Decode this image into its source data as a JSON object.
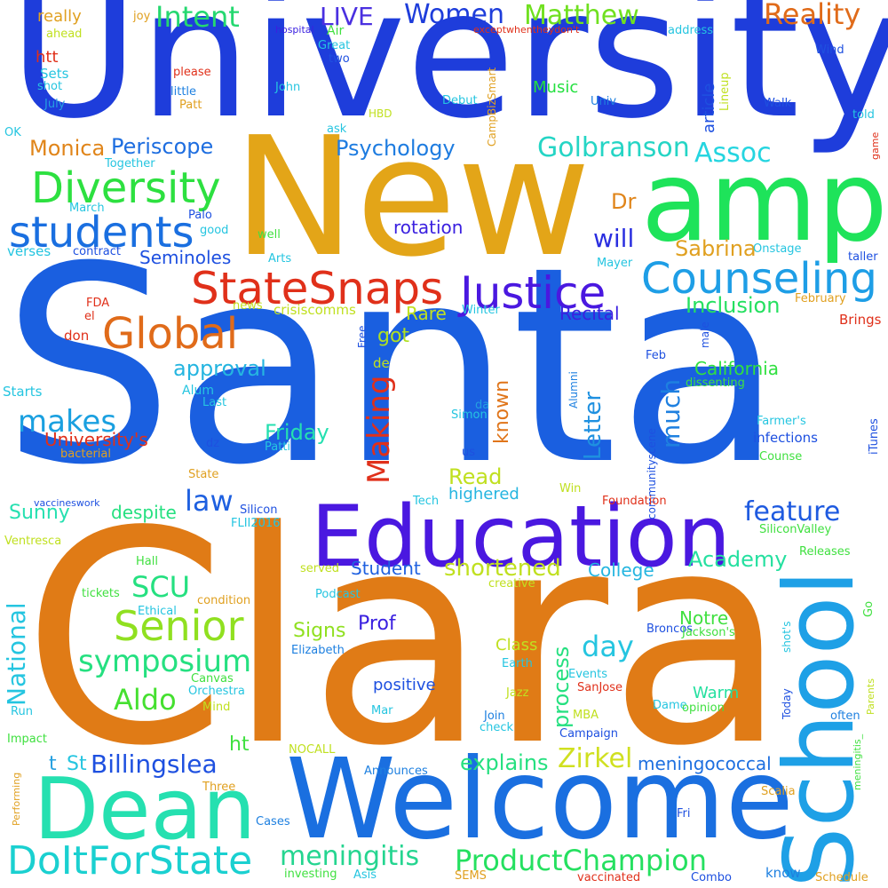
{
  "words": [
    {
      "text": "University",
      "color": "#1e3ddb"
    },
    {
      "text": "Santa",
      "color": "#1a5fe0"
    },
    {
      "text": "Clara",
      "color": "#e07b16"
    },
    {
      "text": "New",
      "color": "#e3a518"
    },
    {
      "text": "amp",
      "color": "#1ee35a"
    },
    {
      "text": "Welcome",
      "color": "#1a6fe0"
    },
    {
      "text": "Education",
      "color": "#4a18e0"
    },
    {
      "text": "School",
      "color": "#1ea0e6"
    },
    {
      "text": "Dean",
      "color": "#25e0b0"
    },
    {
      "text": "DoItForState",
      "color": "#1ad0d0"
    },
    {
      "text": "StateSnaps",
      "color": "#e0301a"
    },
    {
      "text": "Justice",
      "color": "#4a18e0"
    },
    {
      "text": "Counseling",
      "color": "#1e9ee6"
    },
    {
      "text": "Diversity",
      "color": "#2de040"
    },
    {
      "text": "students",
      "color": "#1a6fe0"
    },
    {
      "text": "Global",
      "color": "#e06b1a"
    },
    {
      "text": "Senior",
      "color": "#90e020"
    },
    {
      "text": "meningitis",
      "color": "#25d590"
    },
    {
      "text": "ProductChampion",
      "color": "#25e060"
    },
    {
      "text": "symposium",
      "color": "#25e080"
    },
    {
      "text": "Reality",
      "color": "#e06b1a"
    },
    {
      "text": "Matthew",
      "color": "#70e020"
    },
    {
      "text": "Women",
      "color": "#1e3ddb"
    },
    {
      "text": "Intent",
      "color": "#25d870"
    },
    {
      "text": "LIVE",
      "color": "#4a30e0"
    },
    {
      "text": "Golbranson",
      "color": "#25d5c5"
    },
    {
      "text": "Assoc",
      "color": "#25d5e0"
    },
    {
      "text": "Periscope",
      "color": "#1e6ee0"
    },
    {
      "text": "Psychology",
      "color": "#1e7ce0"
    },
    {
      "text": "Monica",
      "color": "#e0851a"
    },
    {
      "text": "makes",
      "color": "#1aa0e0"
    },
    {
      "text": "Making",
      "color": "#e0301a"
    },
    {
      "text": "Billingslea",
      "color": "#1e50e0"
    },
    {
      "text": "Zirkel",
      "color": "#d0e020"
    },
    {
      "text": "feature",
      "color": "#1e5ae0"
    },
    {
      "text": "shortened",
      "color": "#c0e020"
    },
    {
      "text": "SCU",
      "color": "#25e080"
    },
    {
      "text": "Aldo",
      "color": "#45e030"
    },
    {
      "text": "day",
      "color": "#25c5e0"
    },
    {
      "text": "law",
      "color": "#1e60e0"
    },
    {
      "text": "Sabrina",
      "color": "#e0a020"
    },
    {
      "text": "Dr",
      "color": "#e0851a"
    },
    {
      "text": "will",
      "color": "#2a2ee0"
    },
    {
      "text": "much",
      "color": "#1e80e0"
    },
    {
      "text": "Inclusion",
      "color": "#25e060"
    },
    {
      "text": "Academy",
      "color": "#25e0a0"
    },
    {
      "text": "Letter",
      "color": "#1e90e0"
    },
    {
      "text": "explains",
      "color": "#25e080"
    },
    {
      "text": "meningococcal",
      "color": "#1e70e0"
    },
    {
      "text": "National",
      "color": "#25c5e0"
    },
    {
      "text": "process",
      "color": "#25e080"
    },
    {
      "text": "California",
      "color": "#30e040"
    },
    {
      "text": "known",
      "color": "#e0751a"
    },
    {
      "text": "Friday",
      "color": "#25e0b0"
    },
    {
      "text": "approval",
      "color": "#25b5e0"
    },
    {
      "text": "Read",
      "color": "#c0e020"
    },
    {
      "text": "got",
      "color": "#b0e020"
    },
    {
      "text": "Rare",
      "color": "#c0e020"
    },
    {
      "text": "Recital",
      "color": "#3a20e0"
    },
    {
      "text": "rotation",
      "color": "#3a20e0"
    },
    {
      "text": "Seminoles",
      "color": "#1e50e0"
    },
    {
      "text": "Student",
      "color": "#1e60e0"
    },
    {
      "text": "College",
      "color": "#25b5e0"
    },
    {
      "text": "Prof",
      "color": "#3a20e0"
    },
    {
      "text": "Signs",
      "color": "#90e020"
    },
    {
      "text": "Notre",
      "color": "#40e040"
    },
    {
      "text": "Warm",
      "color": "#25e0a0"
    },
    {
      "text": "Sunny",
      "color": "#25e0b0"
    },
    {
      "text": "despite",
      "color": "#25e080"
    },
    {
      "text": "University's",
      "color": "#e0301a"
    },
    {
      "text": "ht",
      "color": "#40e040"
    },
    {
      "text": "St",
      "color": "#25c5e0"
    },
    {
      "text": "t",
      "color": "#25a0e0"
    },
    {
      "text": "Music",
      "color": "#25e040"
    },
    {
      "text": "article",
      "color": "#1e50e0"
    },
    {
      "text": "Class",
      "color": "#c0e020"
    },
    {
      "text": "positive",
      "color": "#1e50e0"
    },
    {
      "text": "highered",
      "color": "#25b5e0"
    },
    {
      "text": "htt",
      "color": "#e0301a"
    },
    {
      "text": "really",
      "color": "#e0a020"
    },
    {
      "text": "Sets",
      "color": "#25c5e0"
    },
    {
      "text": "Air",
      "color": "#40e040"
    },
    {
      "text": "Great",
      "color": "#25c5e0"
    },
    {
      "text": "two",
      "color": "#1e50e0"
    },
    {
      "text": "hospital",
      "color": "#3a20e0"
    },
    {
      "text": "exceptwhentheydon't",
      "color": "#e0301a"
    },
    {
      "text": "address",
      "color": "#25c5e0"
    },
    {
      "text": "Wind",
      "color": "#1e50e0"
    },
    {
      "text": "joy",
      "color": "#e0a020"
    },
    {
      "text": "ahead",
      "color": "#c0e020"
    },
    {
      "text": "please",
      "color": "#e0301a"
    },
    {
      "text": "little",
      "color": "#1e80e0"
    },
    {
      "text": "shot",
      "color": "#25c5e0"
    },
    {
      "text": "July",
      "color": "#25a0e0"
    },
    {
      "text": "Patt",
      "color": "#e0a020"
    },
    {
      "text": "John",
      "color": "#25c5e0"
    },
    {
      "text": "HBD",
      "color": "#c0e020"
    },
    {
      "text": "CampBizSmart",
      "color": "#e0a020"
    },
    {
      "text": "Debut",
      "color": "#25c5e0"
    },
    {
      "text": "Univ",
      "color": "#1e80e0"
    },
    {
      "text": "Lineup",
      "color": "#c0e020"
    },
    {
      "text": "Walk",
      "color": "#1e50e0"
    },
    {
      "text": "told",
      "color": "#25c5e0"
    },
    {
      "text": "game",
      "color": "#e0301a"
    },
    {
      "text": "OK",
      "color": "#25c5e0"
    },
    {
      "text": "ask",
      "color": "#25c5e0"
    },
    {
      "text": "Together",
      "color": "#25c5e0"
    },
    {
      "text": "March",
      "color": "#25c5e0"
    },
    {
      "text": "Palo",
      "color": "#1e50e0"
    },
    {
      "text": "good",
      "color": "#25c5e0"
    },
    {
      "text": "well",
      "color": "#40e040"
    },
    {
      "text": "verses",
      "color": "#25c5e0"
    },
    {
      "text": "contract",
      "color": "#1e50e0"
    },
    {
      "text": "Arts",
      "color": "#25c5e0"
    },
    {
      "text": "Mayer",
      "color": "#25c5e0"
    },
    {
      "text": "Onstage",
      "color": "#25c5e0"
    },
    {
      "text": "taller",
      "color": "#1e50e0"
    },
    {
      "text": "FDA",
      "color": "#e0301a"
    },
    {
      "text": "el",
      "color": "#e0301a"
    },
    {
      "text": "don",
      "color": "#e0301a"
    },
    {
      "text": "news",
      "color": "#c0e020"
    },
    {
      "text": "crisiscomms",
      "color": "#c0e020"
    },
    {
      "text": "Winter",
      "color": "#25c5e0"
    },
    {
      "text": "February",
      "color": "#e0a020"
    },
    {
      "text": "Brings",
      "color": "#e0301a"
    },
    {
      "text": "Free",
      "color": "#1e50e0"
    },
    {
      "text": "male",
      "color": "#1e50e0"
    },
    {
      "text": "Feb",
      "color": "#1e50e0"
    },
    {
      "text": "Alumni",
      "color": "#1e80e0"
    },
    {
      "text": "Alum",
      "color": "#25c5e0"
    },
    {
      "text": "Last",
      "color": "#25c5e0"
    },
    {
      "text": "Starts",
      "color": "#25c5e0"
    },
    {
      "text": "de",
      "color": "#c0e020"
    },
    {
      "text": "dissenting",
      "color": "#40e040"
    },
    {
      "text": "da",
      "color": "#25a0e0"
    },
    {
      "text": "Simon",
      "color": "#25c5e0"
    },
    {
      "text": "communityscene",
      "color": "#1e50e0"
    },
    {
      "text": "Farmer's",
      "color": "#25c5e0"
    },
    {
      "text": "infections",
      "color": "#1e50e0"
    },
    {
      "text": "iTunes",
      "color": "#1e50e0"
    },
    {
      "text": "Counse",
      "color": "#40e040"
    },
    {
      "text": "dz",
      "color": "#1e50e0"
    },
    {
      "text": "Patti",
      "color": "#25c5e0"
    },
    {
      "text": "us",
      "color": "#1e50e0"
    },
    {
      "text": "bacterial",
      "color": "#e0a020"
    },
    {
      "text": "State",
      "color": "#e0a020"
    },
    {
      "text": "Tech",
      "color": "#25c5e0"
    },
    {
      "text": "Win",
      "color": "#c0e020"
    },
    {
      "text": "vaccineswork",
      "color": "#1e50e0"
    },
    {
      "text": "Silicon",
      "color": "#1e50e0"
    },
    {
      "text": "Foundation",
      "color": "#e0301a"
    },
    {
      "text": "FLII2016",
      "color": "#25c5e0"
    },
    {
      "text": "SiliconValley",
      "color": "#40e040"
    },
    {
      "text": "Ventresca",
      "color": "#c0e020"
    },
    {
      "text": "Hall",
      "color": "#40e040"
    },
    {
      "text": "served",
      "color": "#c0e020"
    },
    {
      "text": "Releases",
      "color": "#40e040"
    },
    {
      "text": "creative",
      "color": "#c0e020"
    },
    {
      "text": "Podcast",
      "color": "#25c5e0"
    },
    {
      "text": "tickets",
      "color": "#40e040"
    },
    {
      "text": "condition",
      "color": "#e0a020"
    },
    {
      "text": "Ethical",
      "color": "#25c5e0"
    },
    {
      "text": "Broncos",
      "color": "#1e50e0"
    },
    {
      "text": "Jackson's",
      "color": "#40e040"
    },
    {
      "text": "Go",
      "color": "#40e040"
    },
    {
      "text": "shot's",
      "color": "#25c5e0"
    },
    {
      "text": "Elizabeth",
      "color": "#1e80e0"
    },
    {
      "text": "Earth",
      "color": "#25c5e0"
    },
    {
      "text": "Events",
      "color": "#25c5e0"
    },
    {
      "text": "Canvas",
      "color": "#40e040"
    },
    {
      "text": "SanJose",
      "color": "#e0301a"
    },
    {
      "text": "Parents",
      "color": "#c0e020"
    },
    {
      "text": "Orchestra",
      "color": "#25c5e0"
    },
    {
      "text": "Jazz",
      "color": "#c0e020"
    },
    {
      "text": "Dame",
      "color": "#25c5e0"
    },
    {
      "text": "Today",
      "color": "#1e50e0"
    },
    {
      "text": "Run",
      "color": "#25c5e0"
    },
    {
      "text": "Mind",
      "color": "#c0e020"
    },
    {
      "text": "Mar",
      "color": "#25c5e0"
    },
    {
      "text": "MBA",
      "color": "#c0e020"
    },
    {
      "text": "opinion",
      "color": "#40e040"
    },
    {
      "text": "meningitis_",
      "color": "#40e040"
    },
    {
      "text": "Join",
      "color": "#1e80e0"
    },
    {
      "text": "check",
      "color": "#25c5e0"
    },
    {
      "text": "often",
      "color": "#1e80e0"
    },
    {
      "text": "Impact",
      "color": "#40e040"
    },
    {
      "text": "Campaign",
      "color": "#1e50e0"
    },
    {
      "text": "NOCALL",
      "color": "#c0e020"
    },
    {
      "text": "Announces",
      "color": "#1e80e0"
    },
    {
      "text": "Performing",
      "color": "#e0a020"
    },
    {
      "text": "Three",
      "color": "#e0a020"
    },
    {
      "text": "Fri",
      "color": "#1e50e0"
    },
    {
      "text": "Scalia",
      "color": "#e0a020"
    },
    {
      "text": "Cases",
      "color": "#1e80e0"
    },
    {
      "text": "investing",
      "color": "#40e040"
    },
    {
      "text": "Asis",
      "color": "#25c5e0"
    },
    {
      "text": "SEMS",
      "color": "#e0a020"
    },
    {
      "text": "vaccinated",
      "color": "#e0301a"
    },
    {
      "text": "Combo",
      "color": "#1e50e0"
    },
    {
      "text": "know",
      "color": "#1e80e0"
    },
    {
      "text": "Schedule",
      "color": "#e0a020"
    }
  ]
}
